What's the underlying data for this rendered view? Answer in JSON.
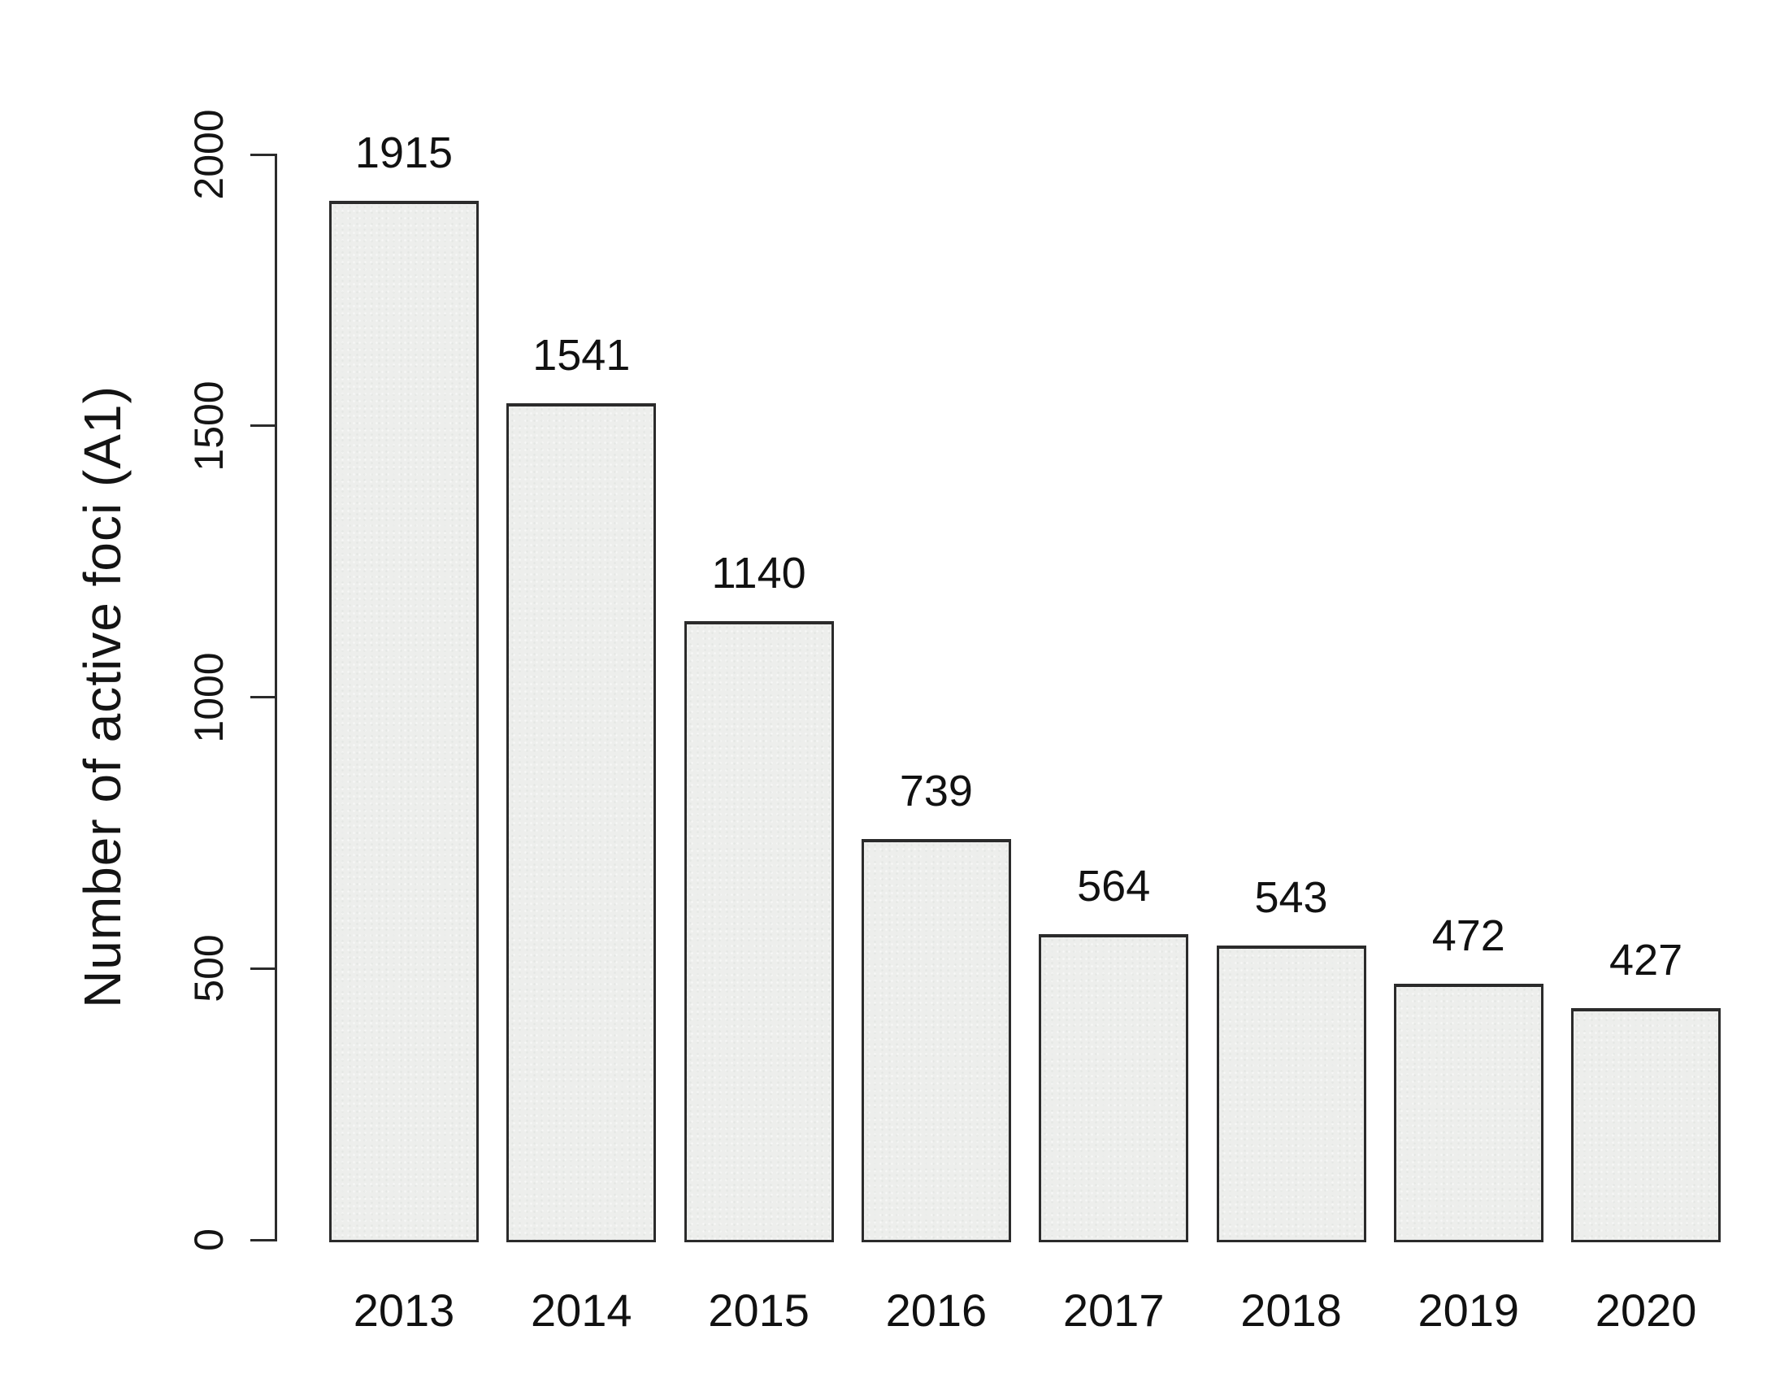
{
  "chart_data": {
    "type": "bar",
    "categories": [
      "2013",
      "2014",
      "2015",
      "2016",
      "2017",
      "2018",
      "2019",
      "2020"
    ],
    "values": [
      1915,
      1541,
      1140,
      739,
      564,
      543,
      472,
      427
    ],
    "bar_value_labels": [
      "1915",
      "1541",
      "1140",
      "739",
      "564",
      "543",
      "472",
      "427"
    ],
    "title": "",
    "xlabel": "",
    "ylabel": "Number of active foci (A1)",
    "ylim": [
      0,
      2000
    ],
    "yticks": [
      0,
      500,
      1000,
      1500,
      2000
    ],
    "ytick_labels": [
      "0",
      "500",
      "1000",
      "1500",
      "2000"
    ],
    "grid": "off",
    "legend": "none",
    "colors": {
      "background": "#ffffff",
      "bar_fill": "#edeeec",
      "bar_border": "#2b2b2b",
      "axis": "#2b2b2b",
      "text": "#111111"
    }
  }
}
